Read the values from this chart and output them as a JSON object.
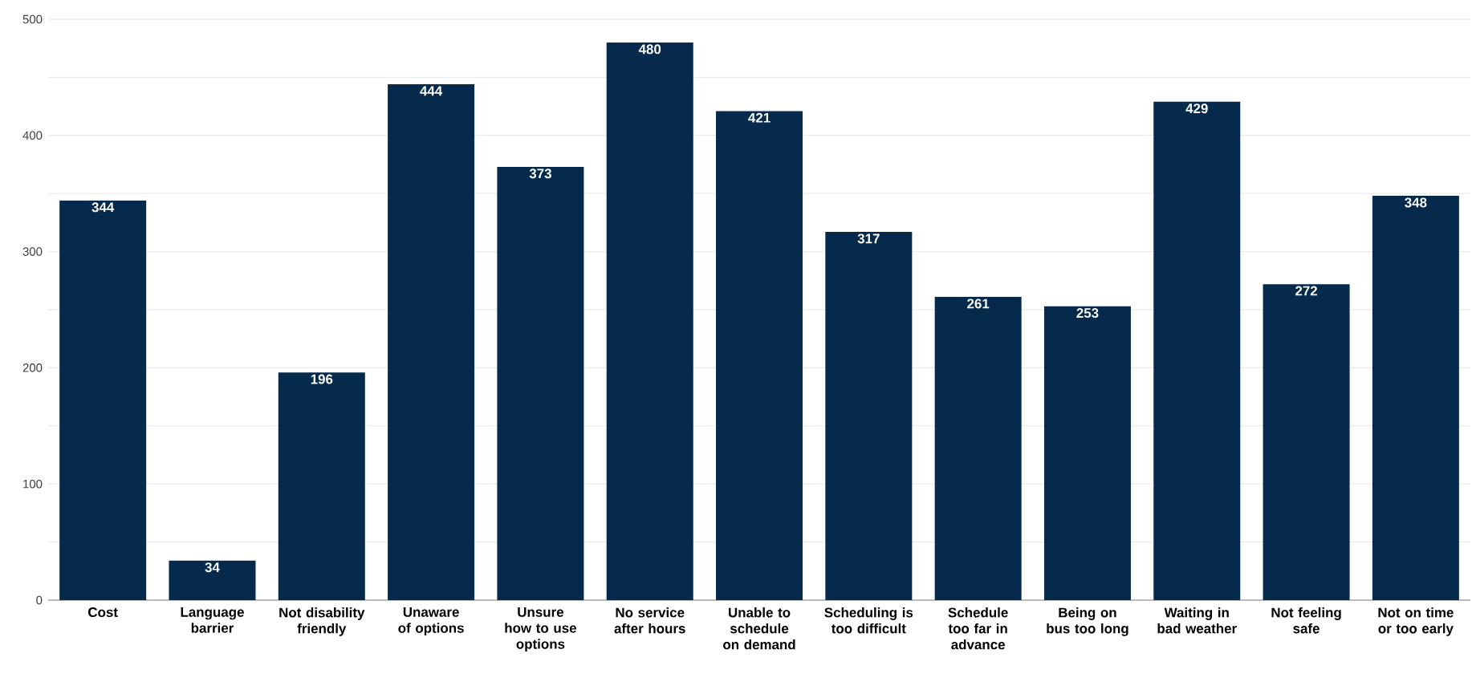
{
  "chart_data": {
    "type": "bar",
    "categories": [
      "Cost",
      "Language barrier",
      "Not disability friendly",
      "Unaware of options",
      "Unsure how to use options",
      "No service after hours",
      "Unable to schedule on demand",
      "Scheduling is too difficult",
      "Schedule too far in advance",
      "Being on bus too long",
      "Waiting in bad weather",
      "Not feeling safe",
      "Not on time or too early"
    ],
    "values": [
      344,
      34,
      196,
      444,
      373,
      480,
      421,
      317,
      261,
      253,
      429,
      272,
      348
    ],
    "color": "#062a4c",
    "ylim": [
      0,
      500
    ],
    "yticks": [
      0,
      {
        "value": 50,
        "label": null
      },
      100,
      {
        "value": 150,
        "label": null
      },
      200,
      {
        "value": 250,
        "label": null
      },
      300,
      {
        "value": 350,
        "label": null
      },
      400,
      {
        "value": 450,
        "label": null
      },
      500
    ],
    "grid": "y",
    "data_labels": true
  }
}
